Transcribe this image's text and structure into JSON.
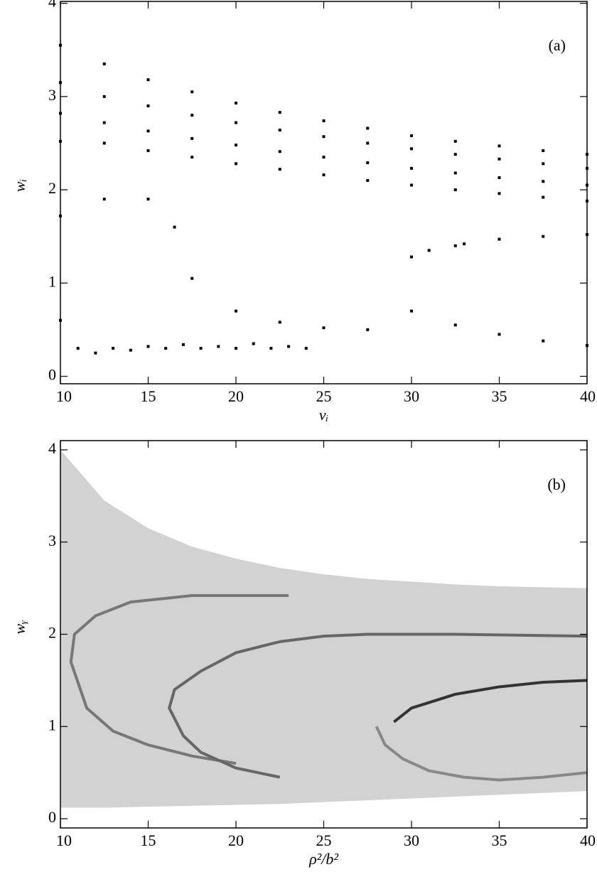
{
  "chart_data": [
    {
      "type": "scatter",
      "annotation": "(a)",
      "x_label": "νᵢ",
      "y_label": "wᵢ",
      "xlim": [
        10,
        40
      ],
      "ylim": [
        -0.08,
        4.02
      ],
      "xticks": [
        10,
        15,
        20,
        25,
        30,
        35,
        40
      ],
      "yticks": [
        0,
        1,
        2,
        3,
        4
      ],
      "series": [
        {
          "color": "#000000",
          "x": [
            10,
            12.5,
            15,
            17.5,
            20,
            22.5,
            25,
            27.5,
            30,
            32.5,
            35,
            37.5,
            40
          ],
          "values": [
            3.55,
            3.35,
            3.18,
            3.05,
            2.93,
            2.83,
            2.74,
            2.66,
            2.58,
            2.52,
            2.47,
            2.42,
            2.38
          ]
        },
        {
          "color": "#000000",
          "x": [
            10,
            12.5,
            15,
            17.5,
            20,
            22.5,
            25,
            27.5,
            30,
            32.5,
            35,
            37.5,
            40
          ],
          "values": [
            3.15,
            3.0,
            2.9,
            2.8,
            2.72,
            2.64,
            2.57,
            2.5,
            2.44,
            2.38,
            2.33,
            2.28,
            2.23
          ]
        },
        {
          "color": "#000000",
          "x": [
            10,
            12.5,
            15,
            17.5,
            20,
            22.5,
            25,
            27.5,
            30,
            32.5,
            35,
            37.5,
            40
          ],
          "values": [
            2.82,
            2.72,
            2.63,
            2.55,
            2.48,
            2.41,
            2.35,
            2.29,
            2.23,
            2.18,
            2.13,
            2.09,
            2.05
          ]
        },
        {
          "color": "#000000",
          "x": [
            10,
            12.5,
            15,
            17.5,
            20,
            22.5,
            25,
            27.5,
            30,
            32.5,
            35,
            37.5,
            40
          ],
          "values": [
            2.52,
            2.5,
            2.42,
            2.35,
            2.28,
            2.22,
            2.16,
            2.1,
            2.05,
            2.0,
            1.96,
            1.92,
            1.88
          ]
        },
        {
          "color": "#000000",
          "x": [
            10,
            12.5,
            15,
            16.5,
            17.5,
            20,
            22.5,
            25,
            27.5,
            30,
            32.5,
            35,
            37.5,
            40
          ],
          "values": [
            1.72,
            1.9,
            1.9,
            1.6,
            1.05,
            0.7,
            0.58,
            0.52,
            0.5,
            0.7,
            0.55,
            0.45,
            0.38,
            0.33
          ]
        },
        {
          "color": "#000000",
          "x": [
            30,
            31,
            32.5,
            33,
            35,
            37.5,
            40
          ],
          "values": [
            1.28,
            1.35,
            1.4,
            1.42,
            1.47,
            1.5,
            1.52
          ]
        },
        {
          "color": "#000000",
          "x": [
            10,
            11,
            12,
            13,
            14,
            15,
            16,
            17,
            18,
            19,
            20,
            21,
            22,
            23,
            24
          ],
          "values": [
            0.6,
            0.3,
            0.25,
            0.3,
            0.28,
            0.32,
            0.3,
            0.34,
            0.3,
            0.32,
            0.3,
            0.35,
            0.3,
            0.32,
            0.3
          ]
        }
      ]
    },
    {
      "type": "density",
      "annotation": "(b)",
      "x_label": "ρ²/b²",
      "y_label": "wᵧ",
      "xlim": [
        10,
        40
      ],
      "ylim": [
        -0.1,
        4.1
      ],
      "xticks": [
        10,
        15,
        20,
        25,
        30,
        35,
        40
      ],
      "yticks": [
        0,
        1,
        2,
        3,
        4
      ],
      "envelope": {
        "color": "#d2d2d2",
        "x": [
          10,
          12.5,
          15,
          17.5,
          20,
          22.5,
          25,
          27.5,
          30,
          32.5,
          35,
          37.5,
          40
        ],
        "upper": [
          4.0,
          3.45,
          3.15,
          2.95,
          2.82,
          2.72,
          2.65,
          2.6,
          2.57,
          2.54,
          2.52,
          2.51,
          2.5
        ],
        "lower": [
          0.12,
          0.12,
          0.13,
          0.14,
          0.15,
          0.16,
          0.18,
          0.2,
          0.22,
          0.24,
          0.26,
          0.28,
          0.3
        ]
      },
      "series": [
        {
          "color": "#777777",
          "x": [
            23,
            17.5,
            14,
            12,
            10.8,
            10.6,
            11.5,
            13,
            15,
            17.5,
            20
          ],
          "values": [
            2.42,
            2.42,
            2.35,
            2.2,
            2.0,
            1.7,
            1.2,
            0.95,
            0.8,
            0.68,
            0.6
          ]
        },
        {
          "color": "#666666",
          "x": [
            40,
            32.5,
            27.5,
            25,
            22.5,
            20,
            18,
            16.5,
            16.2,
            17,
            18,
            20,
            22.5
          ],
          "values": [
            1.98,
            2.0,
            2.0,
            1.98,
            1.92,
            1.8,
            1.6,
            1.4,
            1.2,
            0.9,
            0.72,
            0.55,
            0.45
          ]
        },
        {
          "color": "#333333",
          "x": [
            29,
            30,
            32.5,
            35,
            37.5,
            40
          ],
          "values": [
            1.05,
            1.2,
            1.35,
            1.43,
            1.48,
            1.5
          ]
        },
        {
          "color": "#888888",
          "x": [
            28,
            28.5,
            29.5,
            31,
            33,
            35,
            37.5,
            40
          ],
          "values": [
            1.0,
            0.8,
            0.65,
            0.52,
            0.45,
            0.42,
            0.45,
            0.5
          ]
        }
      ]
    }
  ]
}
